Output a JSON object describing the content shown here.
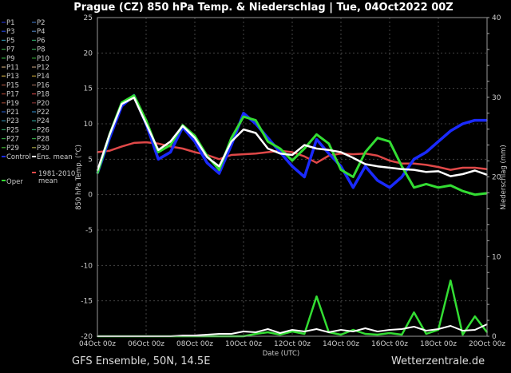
{
  "chart_data": {
    "type": "line",
    "title": "Prague  (CZ)  850 hPa Temp. & Niederschlag | Tue, 04Oct2022 00Z",
    "xlabel": "Date (UTC)",
    "ylabel": "850 hPa Temp. (°C)",
    "y2label": "Niederschlag (mm)",
    "ylim": [
      -20,
      25
    ],
    "y2lim": [
      0,
      40
    ],
    "yticks": [
      -20,
      -15,
      -10,
      -5,
      0,
      5,
      10,
      15,
      20,
      25
    ],
    "y2ticks": [
      0,
      10,
      20,
      30,
      40
    ],
    "xtick_labels": [
      "04Oct 00z",
      "06Oct 00z",
      "08Oct 00z",
      "10Oct 00z",
      "12Oct 00z",
      "14Oct 00z",
      "16Oct 00z",
      "18Oct 00z",
      "20Oct 00z"
    ],
    "x_days_from_start": [
      0,
      0.5,
      1,
      1.5,
      2,
      2.5,
      3,
      3.5,
      4,
      4.5,
      5,
      5.5,
      6,
      6.5,
      7,
      7.5,
      8,
      8.5,
      9,
      9.5,
      10,
      10.5,
      11,
      11.5,
      12,
      12.5,
      13,
      13.5,
      14,
      14.5,
      15,
      15.5,
      16
    ],
    "grid": true,
    "series": [
      {
        "name": "1981-2010 mean",
        "color": "#e04848",
        "width": 2.5,
        "axis": "temp",
        "values": [
          6.0,
          6.2,
          6.8,
          7.3,
          7.4,
          7.2,
          6.8,
          6.5,
          6.0,
          5.6,
          5.0,
          5.6,
          5.7,
          5.8,
          6.0,
          6.2,
          6.0,
          5.4,
          4.5,
          5.5,
          5.8,
          5.7,
          5.8,
          5.5,
          4.8,
          4.4,
          4.4,
          4.2,
          3.9,
          3.5,
          3.8,
          3.8,
          3.6
        ]
      },
      {
        "name": "Control",
        "color": "#1a2aff",
        "width": 3.5,
        "axis": "temp",
        "values": [
          3.0,
          8.0,
          12.5,
          14.0,
          10.0,
          5.0,
          6.0,
          9.5,
          7.5,
          4.5,
          3.0,
          7.0,
          11.5,
          10.0,
          8.0,
          6.0,
          4.0,
          2.5,
          7.8,
          5.8,
          4.0,
          1.0,
          4.0,
          2.0,
          1.0,
          2.5,
          5.0,
          6.0,
          7.5,
          9.0,
          10.0,
          10.5,
          10.5
        ]
      },
      {
        "name": "Oper",
        "color": "#33dd33",
        "width": 3,
        "axis": "temp",
        "values": [
          3.0,
          8.5,
          13.0,
          14.0,
          10.5,
          6.0,
          7.0,
          9.8,
          8.3,
          5.5,
          3.5,
          8.0,
          11.0,
          10.5,
          7.5,
          6.5,
          4.8,
          6.5,
          8.5,
          7.2,
          3.5,
          2.5,
          6.0,
          8.0,
          7.5,
          4.0,
          1.0,
          1.5,
          1.0,
          1.3,
          0.5,
          0.0,
          0.2
        ]
      },
      {
        "name": "Ens. mean",
        "color": "#ffffff",
        "width": 2.5,
        "axis": "temp",
        "values": [
          3.4,
          8.5,
          12.8,
          13.7,
          10.0,
          6.3,
          7.5,
          9.7,
          8.0,
          5.3,
          4.0,
          7.5,
          9.2,
          8.7,
          6.5,
          5.8,
          5.6,
          7.0,
          6.5,
          6.3,
          6.0,
          5.2,
          4.3,
          4.0,
          3.8,
          3.6,
          3.5,
          3.2,
          3.3,
          2.6,
          2.9,
          3.4,
          2.8
        ]
      },
      {
        "name": "Oper precip",
        "color": "#33dd33",
        "width": 2.5,
        "axis": "precip",
        "values": [
          0,
          0,
          0,
          0,
          0,
          0,
          0,
          0,
          0,
          0,
          0,
          0,
          0,
          0.3,
          0.5,
          0.2,
          0.6,
          0.3,
          5.0,
          0.5,
          0.2,
          0.8,
          0.3,
          0.2,
          0.4,
          0.2,
          3.0,
          0.3,
          0.8,
          7.0,
          0.2,
          2.5,
          0.5
        ]
      },
      {
        "name": "Ens. mean precip",
        "color": "#ffffff",
        "width": 2,
        "axis": "precip",
        "values": [
          0,
          0,
          0,
          0,
          0,
          0,
          0,
          0.1,
          0.1,
          0.2,
          0.3,
          0.3,
          0.6,
          0.5,
          0.9,
          0.4,
          0.8,
          0.6,
          0.9,
          0.5,
          0.8,
          0.6,
          1.0,
          0.6,
          0.8,
          0.9,
          1.2,
          0.7,
          0.9,
          1.3,
          0.7,
          0.8,
          1.5
        ]
      }
    ],
    "legend": {
      "placement": "left-outside",
      "entries": [
        {
          "label": "P1",
          "color": "#2030c0"
        },
        {
          "label": "P2",
          "color": "#3a6ab0"
        },
        {
          "label": "P3",
          "color": "#2040d0"
        },
        {
          "label": "P4",
          "color": "#4a78b0"
        },
        {
          "label": "P5",
          "color": "#2a8aa0"
        },
        {
          "label": "P6",
          "color": "#2a9a60"
        },
        {
          "label": "P7",
          "color": "#30a040"
        },
        {
          "label": "P8",
          "color": "#30a050"
        },
        {
          "label": "P9",
          "color": "#30b040"
        },
        {
          "label": "P10",
          "color": "#30a030"
        },
        {
          "label": "P11",
          "color": "#c0a070"
        },
        {
          "label": "P12",
          "color": "#b09070"
        },
        {
          "label": "P13",
          "color": "#c0a040"
        },
        {
          "label": "P14",
          "color": "#b09030"
        },
        {
          "label": "P15",
          "color": "#a05040"
        },
        {
          "label": "P16",
          "color": "#906050"
        },
        {
          "label": "P17",
          "color": "#a04030"
        },
        {
          "label": "P18",
          "color": "#c04040"
        },
        {
          "label": "P19",
          "color": "#904030"
        },
        {
          "label": "P20",
          "color": "#803030"
        },
        {
          "label": "P21",
          "color": "#2050b0"
        },
        {
          "label": "P22",
          "color": "#2a7ab0"
        },
        {
          "label": "P23",
          "color": "#2a80a0"
        },
        {
          "label": "P24",
          "color": "#2a9a90"
        },
        {
          "label": "P25",
          "color": "#2a9a60"
        },
        {
          "label": "P26",
          "color": "#2aa060"
        },
        {
          "label": "P27",
          "color": "#30a040"
        },
        {
          "label": "P28",
          "color": "#30a040"
        },
        {
          "label": "P29",
          "color": "#40b030"
        },
        {
          "label": "P30",
          "color": "#a0a040"
        },
        {
          "label": "Control",
          "color": "#1a2aff"
        },
        {
          "label": "Ens. mean",
          "color": "#ffffff"
        }
      ],
      "climate_label_1": "1981-2010",
      "climate_label_2": "mean",
      "climate_color": "#e04848",
      "oper_label": "Oper",
      "oper_color": "#33dd33"
    }
  },
  "footer": {
    "left": "GFS Ensemble, 50N, 14.5E",
    "right": "Wetterzentrale.de"
  }
}
